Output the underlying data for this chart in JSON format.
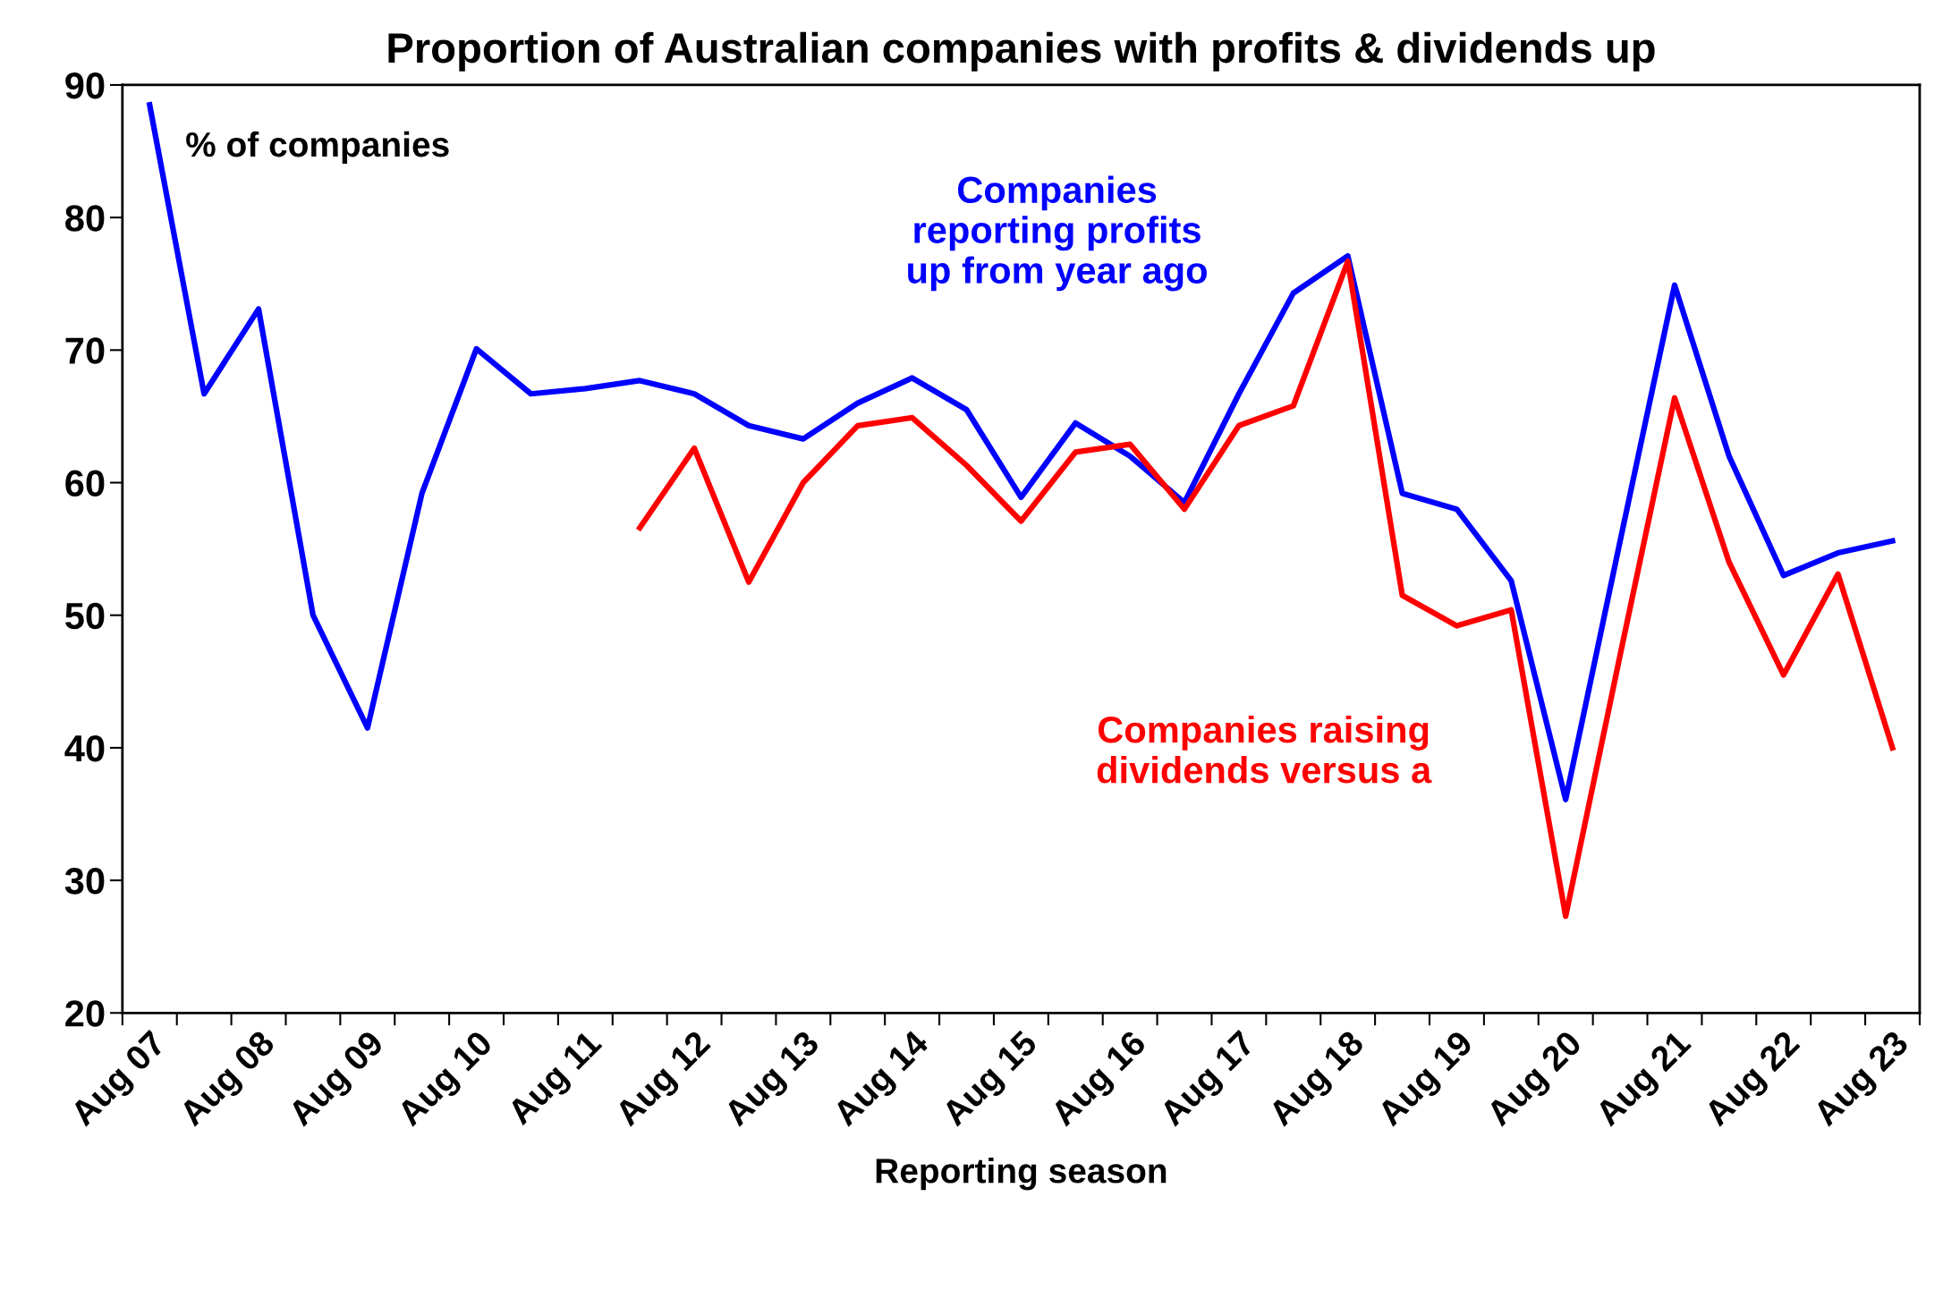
{
  "chart_data": {
    "type": "line",
    "title": "Proportion of Australian companies with profits & dividends up",
    "xlabel": "Reporting season",
    "annotations": [
      "% of companies"
    ],
    "categories": [
      "Aug 07",
      null,
      "Aug 08",
      null,
      "Aug 09",
      null,
      "Aug 10",
      null,
      "Aug 11",
      null,
      "Aug 12",
      null,
      "Aug 13",
      null,
      "Aug 14",
      null,
      "Aug 15",
      null,
      "Aug 16",
      null,
      "Aug 17",
      null,
      "Aug 18",
      null,
      "Aug 19",
      null,
      "Aug 20",
      null,
      "Aug 21",
      null,
      "Aug 22",
      null,
      "Aug 23"
    ],
    "series": [
      {
        "name": "Companies reporting profits up from year ago",
        "color": "#0000ff",
        "values": [
          88.5,
          66.7,
          73.1,
          50.0,
          41.5,
          59.2,
          70.1,
          66.7,
          67.1,
          67.7,
          66.7,
          64.3,
          63.3,
          66.0,
          67.9,
          65.5,
          58.9,
          64.5,
          62.0,
          58.5,
          66.7,
          74.3,
          77.1,
          59.2,
          58.0,
          52.6,
          36.1,
          55.6,
          74.9,
          62.0,
          53.0,
          54.7,
          55.6
        ]
      },
      {
        "name": "Companies raising dividends versus a",
        "color": "#ff0000",
        "values": [
          null,
          null,
          null,
          null,
          null,
          null,
          null,
          null,
          null,
          56.6,
          62.6,
          52.5,
          60.0,
          64.3,
          64.9,
          61.3,
          57.1,
          62.3,
          62.9,
          58.0,
          64.3,
          65.8,
          76.7,
          51.5,
          49.2,
          50.4,
          27.3,
          47.0,
          66.4,
          54.0,
          45.5,
          53.1,
          40.0
        ]
      }
    ],
    "ylim": [
      20,
      90
    ],
    "yticks": [
      20,
      30,
      40,
      50,
      60,
      70,
      80,
      90
    ],
    "grid": false,
    "legend": false,
    "marker": "none",
    "line_style": "solid"
  }
}
